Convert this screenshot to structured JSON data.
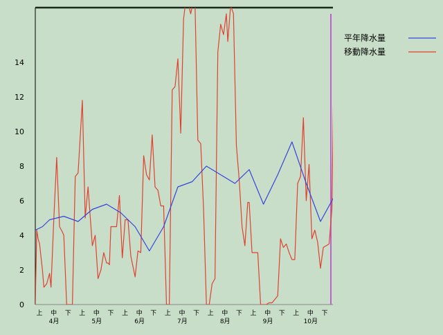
{
  "chart_data": {
    "type": "line",
    "title": "",
    "xlabel": "",
    "ylabel": "",
    "ylim": [
      0,
      17
    ],
    "y_ticks": [
      "0",
      "2",
      "4",
      "6",
      "8",
      "10",
      "12",
      "14"
    ],
    "x_ticks": [
      "上",
      "中",
      "下",
      "上",
      "中",
      "下",
      "上",
      "中",
      "下",
      "上",
      "中",
      "下",
      "上",
      "中",
      "下",
      "上",
      "中",
      "下",
      "上",
      "中",
      "下"
    ],
    "month_labels": [
      "4月",
      "5月",
      "6月",
      "7月",
      "8月",
      "9月",
      "10月"
    ],
    "legend_position": "top-right",
    "grid": false,
    "series": [
      {
        "name": "平年降水量",
        "color": "#3344dd",
        "x": [
          0,
          0.5,
          1,
          2,
          3,
          4,
          5,
          6,
          7,
          7.5,
          8,
          9,
          10,
          11,
          12,
          13,
          14,
          15,
          16,
          17,
          18,
          19,
          20,
          21
        ],
        "values": [
          4.3,
          4.5,
          4.9,
          5.1,
          4.8,
          5.5,
          5.8,
          5.3,
          4.5,
          3.8,
          3.1,
          4.5,
          6.8,
          7.1,
          8.0,
          7.5,
          7.0,
          7.8,
          5.8,
          7.5,
          9.4,
          7.0,
          4.8,
          6.3
        ]
      },
      {
        "name": "移動降水量",
        "color": "#e04030",
        "x": [
          0,
          0.1,
          0.2,
          0.3,
          0.5,
          0.6,
          0.8,
          1,
          1.1,
          1.3,
          1.5,
          1.7,
          1.9,
          2,
          2.2,
          2.4,
          2.6,
          2.8,
          3,
          3.3,
          3.5,
          3.7,
          4,
          4.2,
          4.4,
          4.6,
          4.8,
          5,
          5.1,
          5.2,
          5.3,
          5.5,
          5.7,
          5.9,
          6.1,
          6.3,
          6.5,
          6.7,
          7,
          7.2,
          7.4,
          7.6,
          7.8,
          8,
          8.2,
          8.4,
          8.6,
          8.8,
          9,
          9.2,
          9.4,
          9.6,
          9.8,
          10,
          10.2,
          10.4,
          10.5,
          10.7,
          10.9,
          11,
          11.2,
          11.4,
          11.6,
          11.8,
          12,
          12.2,
          12.4,
          12.6,
          12.8,
          13,
          13.2,
          13.4,
          13.5,
          13.7,
          13.9,
          14.1,
          14.3,
          14.5,
          14.7,
          14.9,
          15,
          15.2,
          15.4,
          15.6,
          15.8,
          16,
          16.2,
          16.4,
          16.6,
          16.8,
          17,
          17.2,
          17.4,
          17.6,
          17.8,
          18,
          18.2,
          18.4,
          18.6,
          18.8,
          19,
          19.2,
          19.4,
          19.6,
          19.8,
          20,
          20.2,
          20.4,
          20.6,
          20.8,
          21
        ],
        "values": [
          0,
          4.3,
          3.8,
          3.5,
          2.0,
          1.0,
          1.2,
          1.8,
          1.0,
          5.0,
          8.5,
          4.5,
          4.2,
          4.0,
          0,
          0,
          0,
          7.4,
          7.6,
          11.8,
          5.0,
          6.8,
          3.4,
          4.0,
          1.5,
          2.0,
          3.0,
          2.4,
          2.4,
          2.3,
          4.5,
          4.5,
          4.5,
          6.3,
          2.7,
          4.9,
          4.9,
          2.8,
          1.6,
          3.1,
          3.0,
          8.6,
          7.5,
          7.2,
          9.8,
          6.8,
          6.6,
          5.7,
          5.7,
          0,
          0,
          12.4,
          12.6,
          14.2,
          9.9,
          16.5,
          17.2,
          17.5,
          16.8,
          17.2,
          17.5,
          9.5,
          9.3,
          5.5,
          0,
          0,
          1.2,
          1.5,
          14.6,
          16.2,
          15.6,
          16.8,
          15.2,
          17.3,
          16.8,
          9.2,
          7.2,
          4.5,
          3.4,
          5.9,
          5.9,
          3.0,
          3.0,
          3.0,
          0,
          0,
          0,
          0.1,
          0.1,
          0.3,
          0.5,
          3.8,
          3.3,
          3.5,
          3.0,
          2.6,
          2.6,
          7.0,
          7.4,
          10.8,
          6.0,
          8.1,
          3.8,
          4.3,
          3.6,
          2.1,
          3.3,
          3.4,
          3.5,
          5.5,
          17.5
        ]
      }
    ]
  }
}
